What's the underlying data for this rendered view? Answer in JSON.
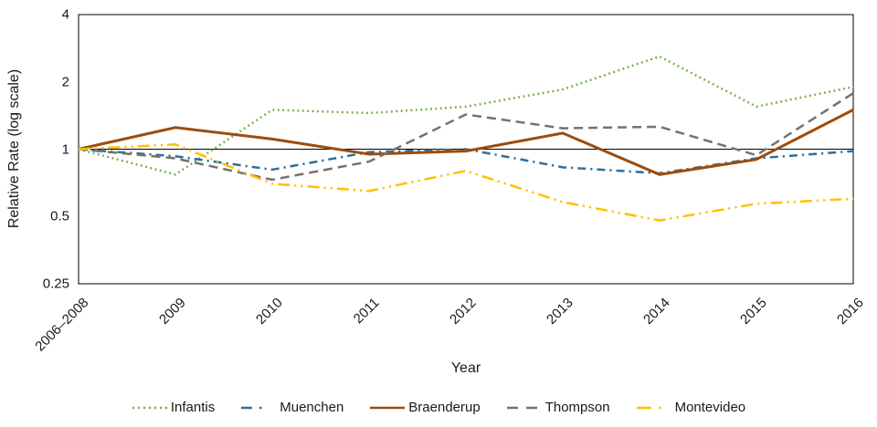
{
  "chart_data": {
    "type": "line",
    "title": "",
    "xlabel": "Year",
    "ylabel": "Relative Rate (log scale)",
    "y_scale": "log2",
    "ylim": [
      0.25,
      4
    ],
    "y_ticks": [
      "4",
      "2",
      "1",
      "0.5",
      "0.25"
    ],
    "y_tick_values": [
      4,
      2,
      1,
      0.5,
      0.25
    ],
    "reference_line": 1,
    "grid": "off",
    "legend_position": "bottom",
    "categories": [
      "2006–2008",
      "2009",
      "2010",
      "2011",
      "2012",
      "2013",
      "2014",
      "2015",
      "2016"
    ],
    "series": [
      {
        "name": "Infantis",
        "color": "#70AD47",
        "style": "dotted",
        "values": [
          1.0,
          0.77,
          1.5,
          1.45,
          1.55,
          1.85,
          2.6,
          1.55,
          1.9
        ]
      },
      {
        "name": "Muenchen",
        "color": "#2E6F9E",
        "style": "dash-dot",
        "values": [
          1.0,
          0.93,
          0.81,
          0.97,
          1.0,
          0.83,
          0.78,
          0.91,
          0.98
        ]
      },
      {
        "name": "Braenderup",
        "color": "#9C4C0C",
        "style": "solid",
        "values": [
          1.0,
          1.25,
          1.11,
          0.95,
          0.98,
          1.18,
          0.77,
          0.9,
          1.5
        ]
      },
      {
        "name": "Thompson",
        "color": "#767171",
        "style": "dashed",
        "values": [
          1.0,
          0.91,
          0.73,
          0.88,
          1.43,
          1.24,
          1.26,
          0.94,
          1.78
        ]
      },
      {
        "name": "Montevideo",
        "color": "#FFC000",
        "style": "long-dash-dot-dot",
        "values": [
          1.0,
          1.05,
          0.7,
          0.65,
          0.8,
          0.58,
          0.48,
          0.57,
          0.6
        ]
      }
    ]
  }
}
